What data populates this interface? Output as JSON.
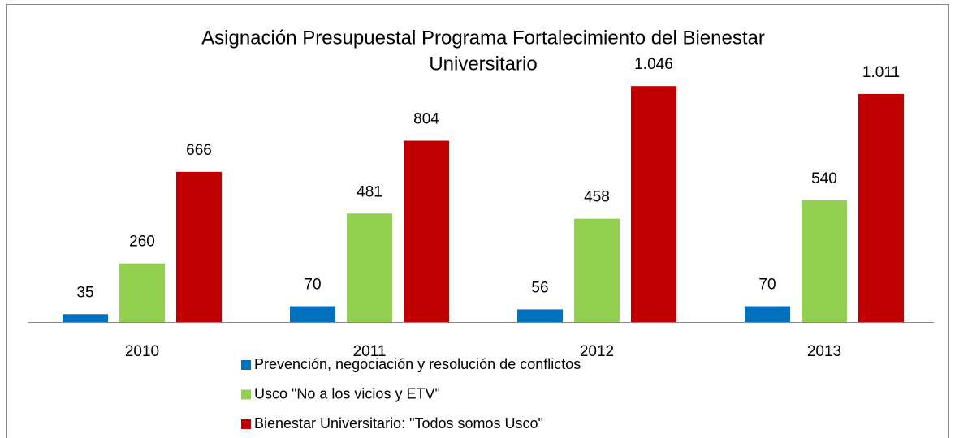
{
  "chart_data": {
    "type": "bar",
    "title": [
      "Asignación Presupuestal Programa Fortalecimiento del Bienestar",
      "Universitario"
    ],
    "categories": [
      "2010",
      "2011",
      "2012",
      "2013"
    ],
    "series": [
      {
        "name": "Prevención, negociación y resolución de conflictos",
        "color": "#0070c0",
        "values": [
          35,
          70,
          56,
          70
        ]
      },
      {
        "name": "Usco \"No a los vicios y ETV\"",
        "color": "#92d050",
        "values": [
          260,
          481,
          458,
          540
        ]
      },
      {
        "name": "Bienestar Universitario: \"Todos somos Usco\"",
        "color": "#c00000",
        "values": [
          666,
          804,
          1046,
          1011
        ],
        "value_labels": [
          "666",
          "804",
          "1.046",
          "1.011"
        ]
      }
    ],
    "legend": "bottom"
  }
}
